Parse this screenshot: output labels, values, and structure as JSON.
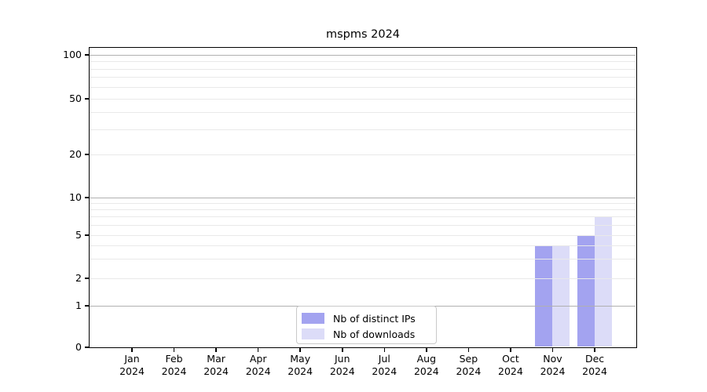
{
  "chart_data": {
    "type": "bar",
    "title": "mspms 2024",
    "x": [
      {
        "month": "Jan",
        "year": "2024"
      },
      {
        "month": "Feb",
        "year": "2024"
      },
      {
        "month": "Mar",
        "year": "2024"
      },
      {
        "month": "Apr",
        "year": "2024"
      },
      {
        "month": "May",
        "year": "2024"
      },
      {
        "month": "Jun",
        "year": "2024"
      },
      {
        "month": "Jul",
        "year": "2024"
      },
      {
        "month": "Aug",
        "year": "2024"
      },
      {
        "month": "Sep",
        "year": "2024"
      },
      {
        "month": "Oct",
        "year": "2024"
      },
      {
        "month": "Nov",
        "year": "2024"
      },
      {
        "month": "Dec",
        "year": "2024"
      }
    ],
    "series": [
      {
        "name": "Nb of distinct IPs",
        "color": "#a3a3f0",
        "values": [
          0,
          0,
          0,
          0,
          0,
          0,
          0,
          0,
          0,
          0,
          4,
          5
        ]
      },
      {
        "name": "Nb of downloads",
        "color": "#dcdcf8",
        "values": [
          0,
          0,
          0,
          0,
          0,
          0,
          0,
          0,
          0,
          0,
          4,
          7
        ]
      }
    ],
    "y_axis": {
      "scale": "symlog",
      "ticks": [
        0,
        1,
        2,
        5,
        10,
        20,
        50,
        100
      ],
      "decade_gridlines": [
        1,
        10,
        100
      ],
      "minor_gridlines": [
        3,
        4,
        6,
        7,
        8,
        9,
        30,
        40,
        60,
        70,
        80,
        90
      ]
    },
    "legend": {
      "position": "lower-center-inside",
      "entries": [
        "Nb of distinct IPs",
        "Nb of downloads"
      ]
    },
    "grid": true
  },
  "colors": {
    "background": "#ffffff",
    "axis": "#000000",
    "grid_decade": "#b0b0b0",
    "grid_minor": "#e9e9e9",
    "bar_distinct_ips": "#a3a3f0",
    "bar_downloads": "#dcdcf8",
    "legend_border": "#c9c9c9",
    "text": "#000000"
  }
}
